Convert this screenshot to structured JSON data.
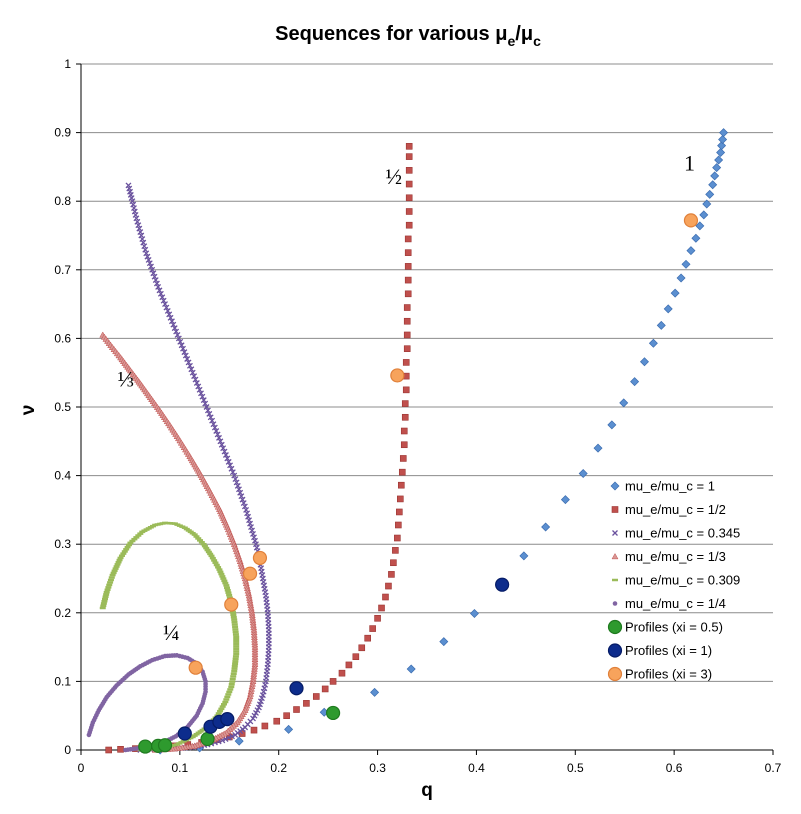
{
  "chart_data": {
    "type": "scatter",
    "title": {
      "main": "Sequences for various ",
      "mu": "μ",
      "sub_e": "e",
      "slash": "/",
      "sub_c": "c"
    },
    "xlabel": "q",
    "ylabel": "ν",
    "xlim": [
      0,
      0.7
    ],
    "ylim": [
      0,
      1
    ],
    "xticks": [
      0,
      0.1,
      0.2,
      0.3,
      0.4,
      0.5,
      0.6,
      0.7
    ],
    "xtick_labels": [
      "0",
      "0.1",
      "0.2",
      "0.3",
      "0.4",
      "0.5",
      "0.6",
      "0.7"
    ],
    "yticks": [
      0,
      0.1,
      0.2,
      0.3,
      0.4,
      0.5,
      0.6,
      0.7,
      0.8,
      0.9,
      1
    ],
    "ytick_labels": [
      "0",
      "0.1",
      "0.2",
      "0.3",
      "0.4",
      "0.5",
      "0.6",
      "0.7",
      "0.8",
      "0.9",
      "1"
    ],
    "grid": "horizontal",
    "legend_position": "right",
    "annotations": [
      {
        "text": "1",
        "q": 0.61,
        "nu": 0.845
      },
      {
        "text": "½",
        "q": 0.308,
        "nu": 0.825
      },
      {
        "text": "⅓",
        "q": 0.037,
        "nu": 0.53
      },
      {
        "text": "¼",
        "q": 0.083,
        "nu": 0.16
      }
    ],
    "series": [
      {
        "name": "mu_e/mu_c = 1",
        "marker": "diamond",
        "color": "#5b8fd0",
        "stroke": "#3c6db0",
        "points": [
          [
            0.08,
            0.0
          ],
          [
            0.12,
            0.003
          ],
          [
            0.16,
            0.013
          ],
          [
            0.21,
            0.03
          ],
          [
            0.246,
            0.055
          ],
          [
            0.297,
            0.084
          ],
          [
            0.334,
            0.118
          ],
          [
            0.367,
            0.158
          ],
          [
            0.398,
            0.199
          ],
          [
            0.424,
            0.242
          ],
          [
            0.448,
            0.283
          ],
          [
            0.47,
            0.325
          ],
          [
            0.49,
            0.365
          ],
          [
            0.508,
            0.403
          ],
          [
            0.523,
            0.44
          ],
          [
            0.537,
            0.474
          ],
          [
            0.549,
            0.506
          ],
          [
            0.56,
            0.537
          ],
          [
            0.57,
            0.566
          ],
          [
            0.579,
            0.593
          ],
          [
            0.587,
            0.619
          ],
          [
            0.594,
            0.643
          ],
          [
            0.601,
            0.666
          ],
          [
            0.607,
            0.688
          ],
          [
            0.612,
            0.708
          ],
          [
            0.617,
            0.728
          ],
          [
            0.622,
            0.746
          ],
          [
            0.626,
            0.764
          ],
          [
            0.63,
            0.78
          ],
          [
            0.633,
            0.796
          ],
          [
            0.636,
            0.81
          ],
          [
            0.639,
            0.824
          ],
          [
            0.641,
            0.837
          ],
          [
            0.643,
            0.849
          ],
          [
            0.645,
            0.86
          ],
          [
            0.647,
            0.871
          ],
          [
            0.648,
            0.881
          ],
          [
            0.649,
            0.89
          ],
          [
            0.65,
            0.9
          ]
        ]
      },
      {
        "name": "mu_e/mu_c = 1/2",
        "marker": "square",
        "color": "#c0504d",
        "stroke": "#9b3532",
        "points": [
          [
            0.028,
            0.0
          ],
          [
            0.04,
            0.001
          ],
          [
            0.055,
            0.002
          ],
          [
            0.068,
            0.003
          ],
          [
            0.08,
            0.004
          ],
          [
            0.095,
            0.006
          ],
          [
            0.108,
            0.008
          ],
          [
            0.122,
            0.011
          ],
          [
            0.138,
            0.015
          ],
          [
            0.15,
            0.019
          ],
          [
            0.163,
            0.024
          ],
          [
            0.175,
            0.029
          ],
          [
            0.186,
            0.035
          ],
          [
            0.198,
            0.042
          ],
          [
            0.208,
            0.05
          ],
          [
            0.218,
            0.059
          ],
          [
            0.228,
            0.068
          ],
          [
            0.238,
            0.078
          ],
          [
            0.247,
            0.089
          ],
          [
            0.255,
            0.1
          ],
          [
            0.264,
            0.112
          ],
          [
            0.271,
            0.124
          ],
          [
            0.278,
            0.136
          ],
          [
            0.284,
            0.149
          ],
          [
            0.29,
            0.163
          ],
          [
            0.295,
            0.177
          ],
          [
            0.3,
            0.192
          ],
          [
            0.304,
            0.207
          ],
          [
            0.308,
            0.223
          ],
          [
            0.311,
            0.239
          ],
          [
            0.314,
            0.256
          ],
          [
            0.316,
            0.273
          ],
          [
            0.318,
            0.291
          ],
          [
            0.32,
            0.309
          ],
          [
            0.321,
            0.328
          ],
          [
            0.322,
            0.347
          ],
          [
            0.323,
            0.366
          ],
          [
            0.324,
            0.386
          ],
          [
            0.325,
            0.405
          ],
          [
            0.326,
            0.425
          ],
          [
            0.327,
            0.445
          ],
          [
            0.327,
            0.465
          ],
          [
            0.328,
            0.485
          ],
          [
            0.328,
            0.505
          ],
          [
            0.329,
            0.525
          ],
          [
            0.329,
            0.545
          ],
          [
            0.329,
            0.565
          ],
          [
            0.33,
            0.585
          ],
          [
            0.33,
            0.605
          ],
          [
            0.33,
            0.625
          ],
          [
            0.33,
            0.645
          ],
          [
            0.331,
            0.665
          ],
          [
            0.331,
            0.685
          ],
          [
            0.331,
            0.705
          ],
          [
            0.331,
            0.725
          ],
          [
            0.331,
            0.745
          ],
          [
            0.332,
            0.765
          ],
          [
            0.332,
            0.785
          ],
          [
            0.332,
            0.805
          ],
          [
            0.332,
            0.825
          ],
          [
            0.332,
            0.845
          ],
          [
            0.332,
            0.865
          ],
          [
            0.332,
            0.88
          ]
        ]
      },
      {
        "name": "mu_e/mu_c = 0.345",
        "marker": "cross",
        "color": "#6a529e",
        "stroke": "#6a529e",
        "points": [
          [
            0.048,
            0.823
          ],
          [
            0.052,
            0.8
          ],
          [
            0.056,
            0.775
          ],
          [
            0.061,
            0.75
          ],
          [
            0.066,
            0.724
          ],
          [
            0.072,
            0.7
          ],
          [
            0.078,
            0.675
          ],
          [
            0.085,
            0.65
          ],
          [
            0.092,
            0.625
          ],
          [
            0.099,
            0.6
          ],
          [
            0.106,
            0.575
          ],
          [
            0.113,
            0.55
          ],
          [
            0.12,
            0.525
          ],
          [
            0.127,
            0.5
          ],
          [
            0.134,
            0.475
          ],
          [
            0.141,
            0.45
          ],
          [
            0.148,
            0.425
          ],
          [
            0.155,
            0.4
          ],
          [
            0.161,
            0.375
          ],
          [
            0.167,
            0.35
          ],
          [
            0.172,
            0.325
          ],
          [
            0.177,
            0.3
          ],
          [
            0.181,
            0.275
          ],
          [
            0.184,
            0.25
          ],
          [
            0.187,
            0.225
          ],
          [
            0.189,
            0.2
          ],
          [
            0.19,
            0.175
          ],
          [
            0.19,
            0.15
          ],
          [
            0.189,
            0.125
          ],
          [
            0.187,
            0.1
          ],
          [
            0.184,
            0.08
          ],
          [
            0.18,
            0.062
          ],
          [
            0.174,
            0.046
          ],
          [
            0.166,
            0.033
          ],
          [
            0.156,
            0.022
          ],
          [
            0.143,
            0.014
          ],
          [
            0.128,
            0.008
          ],
          [
            0.112,
            0.004
          ],
          [
            0.095,
            0.002
          ],
          [
            0.078,
            0.001
          ],
          [
            0.06,
            0.0
          ]
        ]
      },
      {
        "name": "mu_e/mu_c = 1/3",
        "marker": "triangle",
        "color": "#d99694",
        "stroke": "#c0504d",
        "points": [
          [
            0.022,
            0.605
          ],
          [
            0.03,
            0.59
          ],
          [
            0.04,
            0.572
          ],
          [
            0.05,
            0.553
          ],
          [
            0.06,
            0.534
          ],
          [
            0.07,
            0.514
          ],
          [
            0.08,
            0.494
          ],
          [
            0.09,
            0.473
          ],
          [
            0.1,
            0.451
          ],
          [
            0.11,
            0.428
          ],
          [
            0.12,
            0.404
          ],
          [
            0.13,
            0.378
          ],
          [
            0.14,
            0.351
          ],
          [
            0.148,
            0.325
          ],
          [
            0.155,
            0.3
          ],
          [
            0.161,
            0.275
          ],
          [
            0.166,
            0.25
          ],
          [
            0.17,
            0.225
          ],
          [
            0.173,
            0.2
          ],
          [
            0.175,
            0.175
          ],
          [
            0.176,
            0.15
          ],
          [
            0.176,
            0.125
          ],
          [
            0.174,
            0.1
          ],
          [
            0.171,
            0.078
          ],
          [
            0.166,
            0.058
          ],
          [
            0.158,
            0.04
          ],
          [
            0.147,
            0.025
          ],
          [
            0.132,
            0.014
          ],
          [
            0.115,
            0.006
          ],
          [
            0.095,
            0.002
          ],
          [
            0.075,
            0.0
          ]
        ]
      },
      {
        "name": "mu_e/mu_c = 0.309",
        "marker": "dash",
        "color": "#9bbb59",
        "stroke": "#9bbb59",
        "points": [
          [
            0.022,
            0.207
          ],
          [
            0.026,
            0.23
          ],
          [
            0.032,
            0.255
          ],
          [
            0.04,
            0.28
          ],
          [
            0.05,
            0.302
          ],
          [
            0.062,
            0.318
          ],
          [
            0.075,
            0.328
          ],
          [
            0.085,
            0.331
          ],
          [
            0.095,
            0.33
          ],
          [
            0.105,
            0.324
          ],
          [
            0.115,
            0.314
          ],
          [
            0.124,
            0.3
          ],
          [
            0.132,
            0.283
          ],
          [
            0.14,
            0.263
          ],
          [
            0.147,
            0.24
          ],
          [
            0.152,
            0.215
          ],
          [
            0.155,
            0.19
          ],
          [
            0.157,
            0.165
          ],
          [
            0.157,
            0.14
          ],
          [
            0.155,
            0.115
          ],
          [
            0.152,
            0.092
          ],
          [
            0.146,
            0.07
          ],
          [
            0.138,
            0.05
          ],
          [
            0.127,
            0.033
          ],
          [
            0.113,
            0.019
          ],
          [
            0.097,
            0.008
          ],
          [
            0.08,
            0.002
          ],
          [
            0.06,
            0.0
          ]
        ]
      },
      {
        "name": "mu_e/mu_c = 1/4",
        "marker": "dot",
        "color": "#8064a2",
        "stroke": "#8064a2",
        "points": [
          [
            0.008,
            0.022
          ],
          [
            0.012,
            0.04
          ],
          [
            0.018,
            0.058
          ],
          [
            0.026,
            0.077
          ],
          [
            0.036,
            0.094
          ],
          [
            0.048,
            0.11
          ],
          [
            0.06,
            0.122
          ],
          [
            0.072,
            0.131
          ],
          [
            0.085,
            0.137
          ],
          [
            0.097,
            0.138
          ],
          [
            0.108,
            0.134
          ],
          [
            0.117,
            0.126
          ],
          [
            0.123,
            0.114
          ],
          [
            0.126,
            0.1
          ],
          [
            0.126,
            0.085
          ],
          [
            0.123,
            0.068
          ],
          [
            0.117,
            0.05
          ],
          [
            0.108,
            0.034
          ],
          [
            0.096,
            0.02
          ],
          [
            0.082,
            0.01
          ],
          [
            0.065,
            0.004
          ],
          [
            0.045,
            0.0
          ]
        ]
      },
      {
        "name": "Profiles (xi = 0.5)",
        "marker": "circle",
        "color": "#2e9a2e",
        "stroke": "#1f7a1f",
        "points": [
          [
            0.065,
            0.005
          ],
          [
            0.078,
            0.006
          ],
          [
            0.085,
            0.007
          ],
          [
            0.128,
            0.016
          ],
          [
            0.255,
            0.054
          ]
        ]
      },
      {
        "name": "Profiles (xi = 1)",
        "marker": "circle",
        "color": "#0d2c8c",
        "stroke": "#061c66",
        "points": [
          [
            0.105,
            0.024
          ],
          [
            0.131,
            0.034
          ],
          [
            0.14,
            0.041
          ],
          [
            0.148,
            0.045
          ],
          [
            0.218,
            0.09
          ],
          [
            0.426,
            0.241
          ]
        ]
      },
      {
        "name": "Profiles (xi = 3)",
        "marker": "circle",
        "color": "#f7a35c",
        "stroke": "#e0803a",
        "points": [
          [
            0.116,
            0.12
          ],
          [
            0.152,
            0.212
          ],
          [
            0.171,
            0.257
          ],
          [
            0.181,
            0.28
          ],
          [
            0.32,
            0.546
          ],
          [
            0.617,
            0.772
          ]
        ]
      }
    ]
  }
}
